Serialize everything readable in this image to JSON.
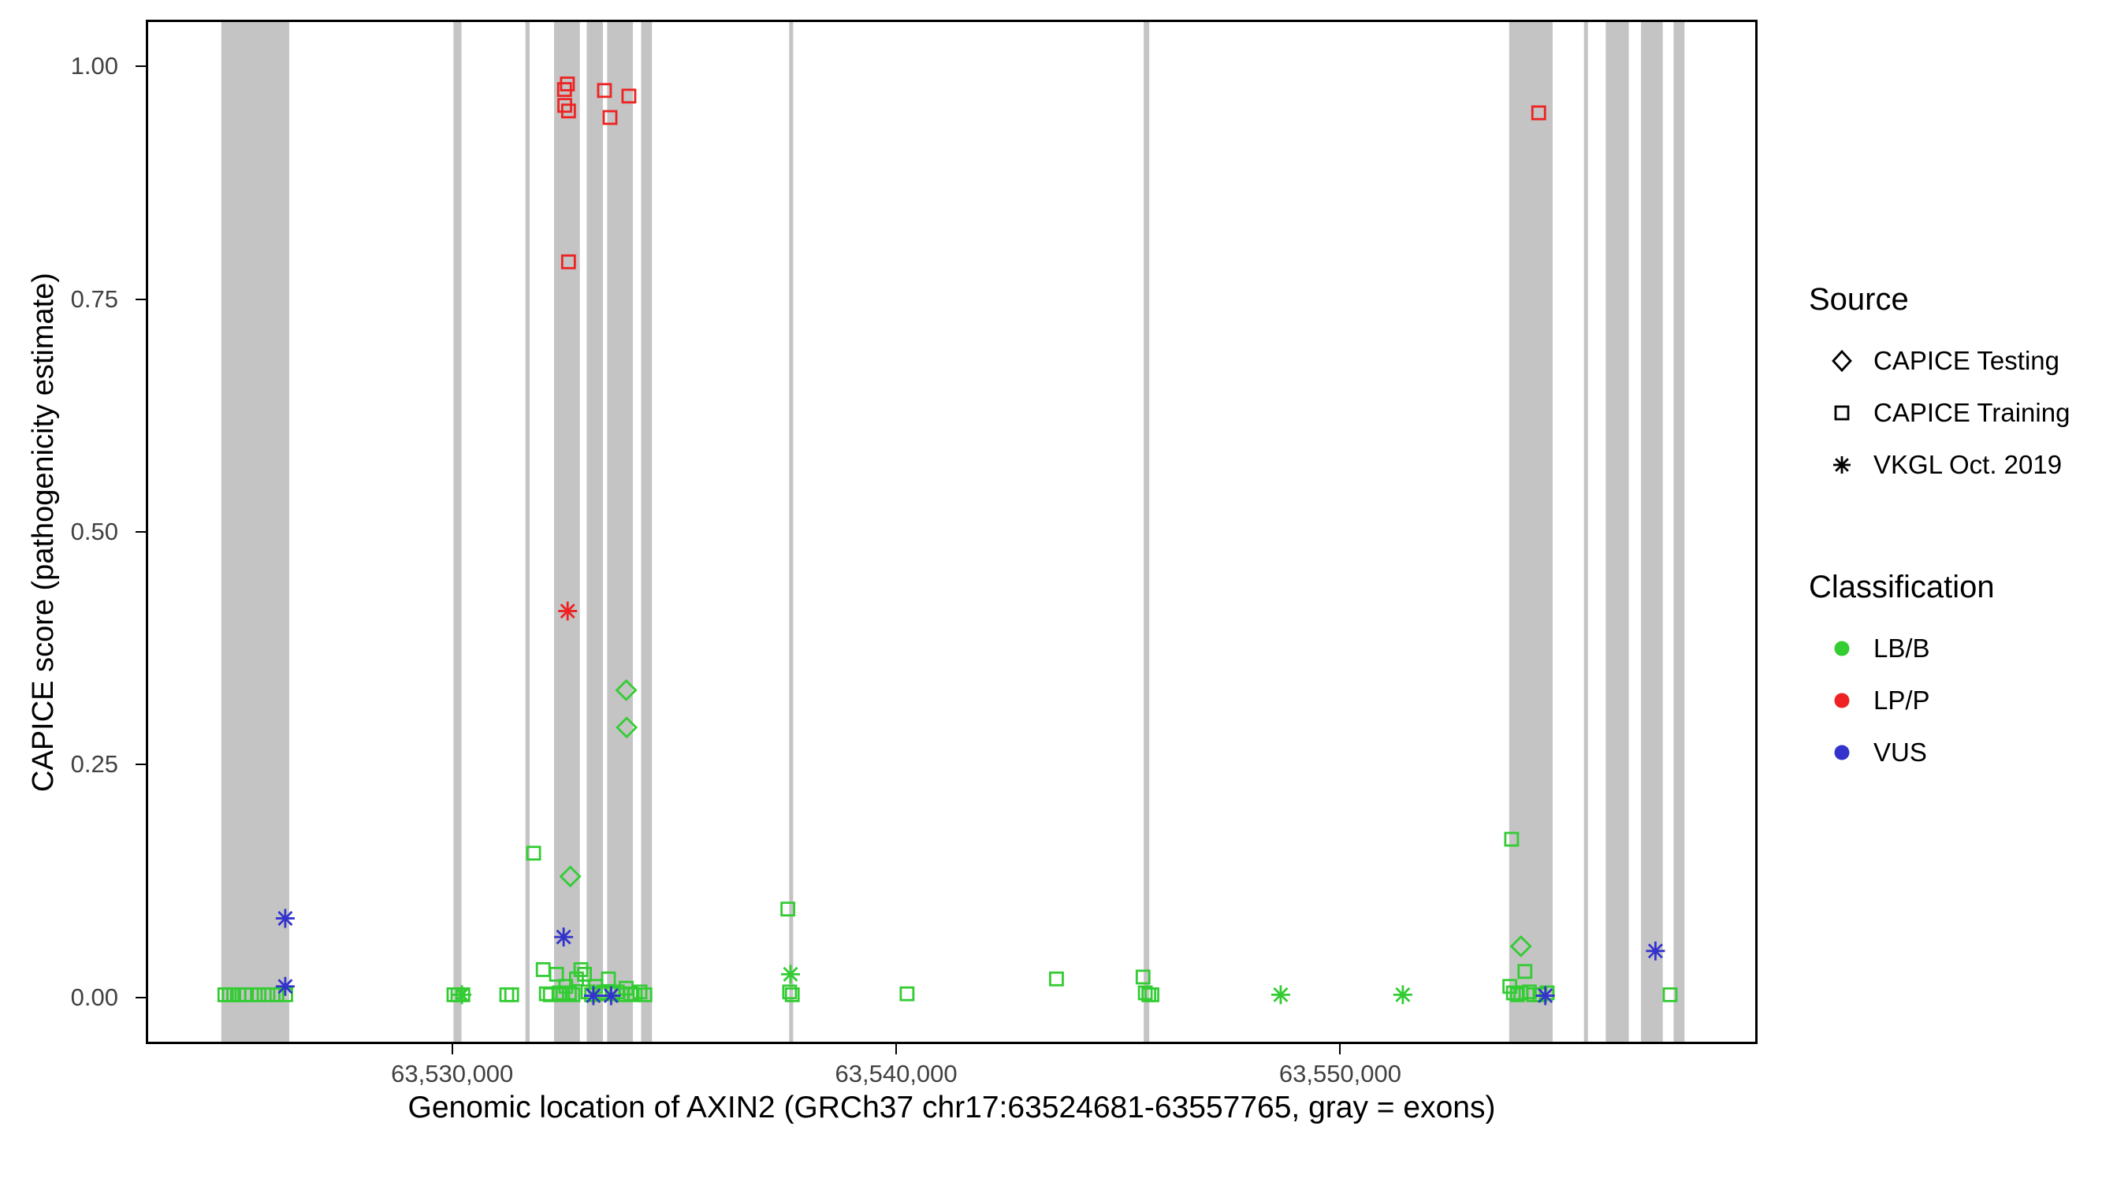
{
  "chart_data": {
    "type": "scatter",
    "title": "",
    "xlabel": "Genomic location of AXIN2 (GRCh37 chr17:63524681-63557765, gray = exons)",
    "ylabel": "CAPICE score (pathogenicity estimate)",
    "xlim": [
      63523100,
      63559400
    ],
    "ylim": [
      -0.05,
      1.05
    ],
    "grid": false,
    "legend_position": "right",
    "x_ticks": [
      {
        "value": 63530000,
        "label": "63,530,000"
      },
      {
        "value": 63540000,
        "label": "63,540,000"
      },
      {
        "value": 63550000,
        "label": "63,550,000"
      }
    ],
    "y_ticks": [
      {
        "value": 0.0,
        "label": "0.00"
      },
      {
        "value": 0.25,
        "label": "0.25"
      },
      {
        "value": 0.5,
        "label": "0.50"
      },
      {
        "value": 0.75,
        "label": "0.75"
      },
      {
        "value": 1.0,
        "label": "1.00"
      }
    ],
    "exons": [
      [
        63524800,
        63526330
      ],
      [
        63530030,
        63530210
      ],
      [
        63531650,
        63531745
      ],
      [
        63532295,
        63532875
      ],
      [
        63533030,
        63533395
      ],
      [
        63533490,
        63534070
      ],
      [
        63534255,
        63534500
      ],
      [
        63537590,
        63537680
      ],
      [
        63545575,
        63545700
      ],
      [
        63553805,
        63554785
      ],
      [
        63555490,
        63555580
      ],
      [
        63555980,
        63556500
      ],
      [
        63556775,
        63557265
      ],
      [
        63557510,
        63557755
      ]
    ],
    "point_format": [
      "x",
      "y",
      "source",
      "classification"
    ],
    "points": [
      [
        63524880,
        0.003,
        "training",
        "LB/B"
      ],
      [
        63524980,
        0.003,
        "training",
        "LB/B"
      ],
      [
        63525080,
        0.003,
        "training",
        "LB/B"
      ],
      [
        63525200,
        0.003,
        "training",
        "LB/B"
      ],
      [
        63525330,
        0.003,
        "training",
        "LB/B"
      ],
      [
        63525480,
        0.003,
        "training",
        "LB/B"
      ],
      [
        63525650,
        0.003,
        "training",
        "LB/B"
      ],
      [
        63525850,
        0.003,
        "training",
        "LB/B"
      ],
      [
        63526050,
        0.003,
        "training",
        "LB/B"
      ],
      [
        63526250,
        0.003,
        "training",
        "LB/B"
      ],
      [
        63530040,
        0.003,
        "training",
        "LB/B"
      ],
      [
        63530130,
        0.003,
        "training",
        "LB/B"
      ],
      [
        63530240,
        0.003,
        "training",
        "LB/B"
      ],
      [
        63531230,
        0.003,
        "training",
        "LB/B"
      ],
      [
        63531340,
        0.003,
        "training",
        "LB/B"
      ],
      [
        63531835,
        0.155,
        "training",
        "LB/B"
      ],
      [
        63532050,
        0.03,
        "training",
        "LB/B"
      ],
      [
        63532120,
        0.004,
        "training",
        "LB/B"
      ],
      [
        63532210,
        0.003,
        "training",
        "LB/B"
      ],
      [
        63532350,
        0.025,
        "training",
        "LB/B"
      ],
      [
        63532420,
        0.005,
        "training",
        "LB/B"
      ],
      [
        63532490,
        0.003,
        "training",
        "LB/B"
      ],
      [
        63532560,
        0.012,
        "training",
        "LB/B"
      ],
      [
        63532640,
        0.005,
        "training",
        "LB/B"
      ],
      [
        63532720,
        0.003,
        "training",
        "LB/B"
      ],
      [
        63532800,
        0.02,
        "training",
        "LB/B"
      ],
      [
        63532900,
        0.03,
        "training",
        "LB/B"
      ],
      [
        63532980,
        0.025,
        "training",
        "LB/B"
      ],
      [
        63533060,
        0.006,
        "training",
        "LB/B"
      ],
      [
        63533140,
        0.003,
        "training",
        "LB/B"
      ],
      [
        63533230,
        0.012,
        "training",
        "LB/B"
      ],
      [
        63533320,
        0.004,
        "training",
        "LB/B"
      ],
      [
        63533410,
        0.006,
        "training",
        "LB/B"
      ],
      [
        63533520,
        0.02,
        "training",
        "LB/B"
      ],
      [
        63533620,
        0.004,
        "training",
        "LB/B"
      ],
      [
        63533720,
        0.006,
        "training",
        "LB/B"
      ],
      [
        63533820,
        0.003,
        "training",
        "LB/B"
      ],
      [
        63533920,
        0.01,
        "training",
        "LB/B"
      ],
      [
        63534020,
        0.004,
        "training",
        "LB/B"
      ],
      [
        63534120,
        0.003,
        "training",
        "LB/B"
      ],
      [
        63534230,
        0.006,
        "training",
        "LB/B"
      ],
      [
        63534340,
        0.003,
        "training",
        "LB/B"
      ],
      [
        63537560,
        0.095,
        "training",
        "LB/B"
      ],
      [
        63537600,
        0.006,
        "training",
        "LB/B"
      ],
      [
        63537660,
        0.003,
        "training",
        "LB/B"
      ],
      [
        63540245,
        0.004,
        "training",
        "LB/B"
      ],
      [
        63543610,
        0.02,
        "training",
        "LB/B"
      ],
      [
        63545560,
        0.022,
        "training",
        "LB/B"
      ],
      [
        63545610,
        0.005,
        "training",
        "LB/B"
      ],
      [
        63545690,
        0.003,
        "training",
        "LB/B"
      ],
      [
        63545760,
        0.003,
        "training",
        "LB/B"
      ],
      [
        63553860,
        0.17,
        "training",
        "LB/B"
      ],
      [
        63553820,
        0.012,
        "training",
        "LB/B"
      ],
      [
        63553900,
        0.005,
        "training",
        "LB/B"
      ],
      [
        63553990,
        0.003,
        "training",
        "LB/B"
      ],
      [
        63554070,
        0.005,
        "training",
        "LB/B"
      ],
      [
        63554160,
        0.028,
        "training",
        "LB/B"
      ],
      [
        63554260,
        0.006,
        "training",
        "LB/B"
      ],
      [
        63554360,
        0.003,
        "training",
        "LB/B"
      ],
      [
        63554500,
        0.003,
        "training",
        "LB/B"
      ],
      [
        63554660,
        0.005,
        "training",
        "LB/B"
      ],
      [
        63557430,
        0.003,
        "training",
        "LB/B"
      ],
      [
        63530220,
        0.003,
        "vkgl",
        "LB/B"
      ],
      [
        63537620,
        0.025,
        "vkgl",
        "LB/B"
      ],
      [
        63548660,
        0.003,
        "vkgl",
        "LB/B"
      ],
      [
        63551410,
        0.003,
        "vkgl",
        "LB/B"
      ],
      [
        63533920,
        0.33,
        "testing",
        "LB/B"
      ],
      [
        63533930,
        0.29,
        "testing",
        "LB/B"
      ],
      [
        63532660,
        0.13,
        "testing",
        "LB/B"
      ],
      [
        63554070,
        0.055,
        "testing",
        "LB/B"
      ],
      [
        63532530,
        0.975,
        "training",
        "LP/P"
      ],
      [
        63532595,
        0.981,
        "training",
        "LP/P"
      ],
      [
        63532535,
        0.958,
        "training",
        "LP/P"
      ],
      [
        63532620,
        0.952,
        "training",
        "LP/P"
      ],
      [
        63533430,
        0.974,
        "training",
        "LP/P"
      ],
      [
        63533555,
        0.945,
        "training",
        "LP/P"
      ],
      [
        63533980,
        0.968,
        "training",
        "LP/P"
      ],
      [
        63532620,
        0.79,
        "training",
        "LP/P"
      ],
      [
        63554470,
        0.95,
        "training",
        "LP/P"
      ],
      [
        63532600,
        0.415,
        "vkgl",
        "LP/P"
      ],
      [
        63526240,
        0.085,
        "vkgl",
        "VUS"
      ],
      [
        63526240,
        0.012,
        "vkgl",
        "VUS"
      ],
      [
        63532510,
        0.065,
        "vkgl",
        "VUS"
      ],
      [
        63533180,
        0.002,
        "vkgl",
        "VUS"
      ],
      [
        63533580,
        0.002,
        "vkgl",
        "VUS"
      ],
      [
        63554620,
        0.002,
        "vkgl",
        "VUS"
      ],
      [
        63557100,
        0.05,
        "vkgl",
        "VUS"
      ]
    ]
  },
  "colors": {
    "LB/B": "#33CC33",
    "LP/P": "#EE2222",
    "VUS": "#3333CC",
    "exon": "#C4C4C4",
    "axis_text": "#414141",
    "panel_border": "#000000"
  },
  "legend": {
    "source": {
      "title": "Source",
      "items": [
        {
          "label": "CAPICE Testing",
          "symbol": "diamond"
        },
        {
          "label": "CAPICE Training",
          "symbol": "square"
        },
        {
          "label": "VKGL Oct. 2019",
          "symbol": "asterisk"
        }
      ]
    },
    "classification": {
      "title": "Classification",
      "items": [
        {
          "label": "LB/B",
          "color": "#33CC33"
        },
        {
          "label": "LP/P",
          "color": "#EE2222"
        },
        {
          "label": "VUS",
          "color": "#3333CC"
        }
      ]
    }
  }
}
